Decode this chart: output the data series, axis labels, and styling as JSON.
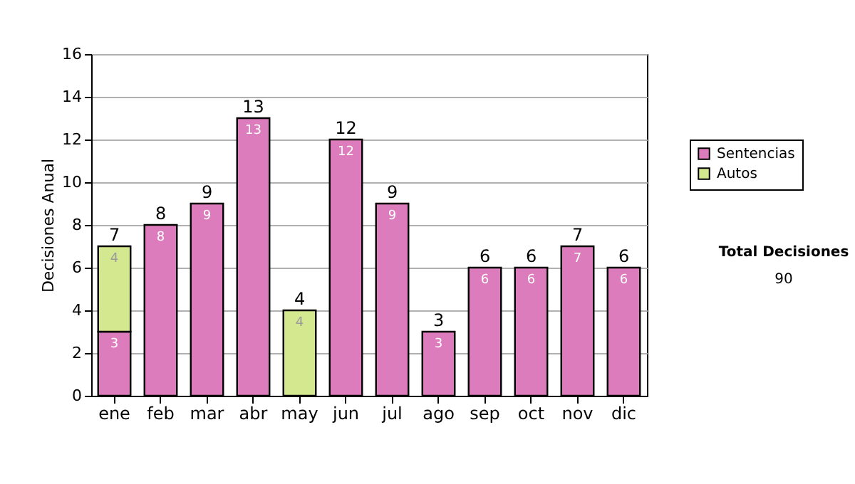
{
  "chart_data": {
    "type": "bar",
    "stacked": true,
    "ylabel": "Decisiones Anual",
    "categories": [
      "ene",
      "feb",
      "mar",
      "abr",
      "may",
      "jun",
      "jul",
      "ago",
      "sep",
      "oct",
      "nov",
      "dic"
    ],
    "series": [
      {
        "name": "Sentencias",
        "color": "#dd7cbd",
        "values": [
          3,
          8,
          9,
          13,
          null,
          12,
          9,
          3,
          6,
          6,
          7,
          6
        ]
      },
      {
        "name": "Autos",
        "color": "#d4e88f",
        "values": [
          4,
          null,
          null,
          null,
          4,
          null,
          null,
          null,
          null,
          null,
          null,
          null
        ]
      }
    ],
    "totals": [
      "7",
      "8",
      "9",
      "13",
      "4",
      "12",
      "9",
      "3",
      "6",
      "6",
      "7",
      "6"
    ],
    "data_labels": true,
    "ylim": [
      0,
      16
    ],
    "yticks": [
      0,
      2,
      4,
      6,
      8,
      10,
      12,
      14,
      16
    ],
    "grid": "y",
    "legend": "right",
    "annotations": [
      "Total Decisiones",
      "90"
    ]
  }
}
